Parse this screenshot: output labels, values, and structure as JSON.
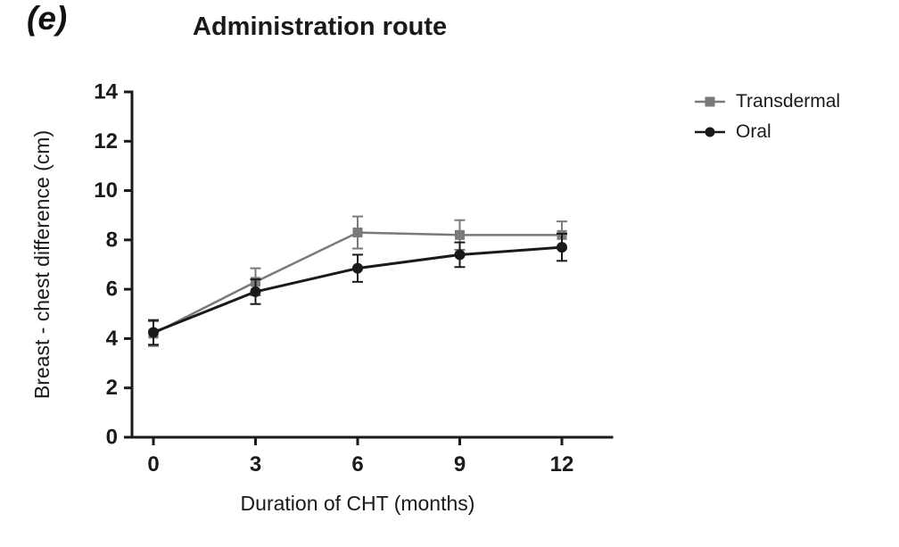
{
  "panel_label": "(e)",
  "chart_data": {
    "type": "line",
    "title": "Administration route",
    "xlabel": "Duration of CHT (months)",
    "ylabel": "Breast - chest difference (cm)",
    "x": [
      0,
      3,
      6,
      9,
      12
    ],
    "xticks": [
      0,
      3,
      6,
      9,
      12
    ],
    "ylim": [
      0,
      14
    ],
    "yticks": [
      0,
      2,
      4,
      6,
      8,
      10,
      12,
      14
    ],
    "grid": false,
    "legend_position": "right",
    "series": [
      {
        "name": "Transdermal",
        "marker": "square",
        "color": "#7a7a7a",
        "values": [
          4.2,
          6.3,
          8.3,
          8.2,
          8.2
        ],
        "errors": [
          0.5,
          0.55,
          0.65,
          0.6,
          0.55
        ]
      },
      {
        "name": "Oral",
        "marker": "circle",
        "color": "#1a1a1a",
        "values": [
          4.25,
          5.9,
          6.85,
          7.4,
          7.7
        ],
        "errors": [
          0.5,
          0.5,
          0.55,
          0.5,
          0.55
        ]
      }
    ],
    "axis_color": "#1a1a1a"
  }
}
